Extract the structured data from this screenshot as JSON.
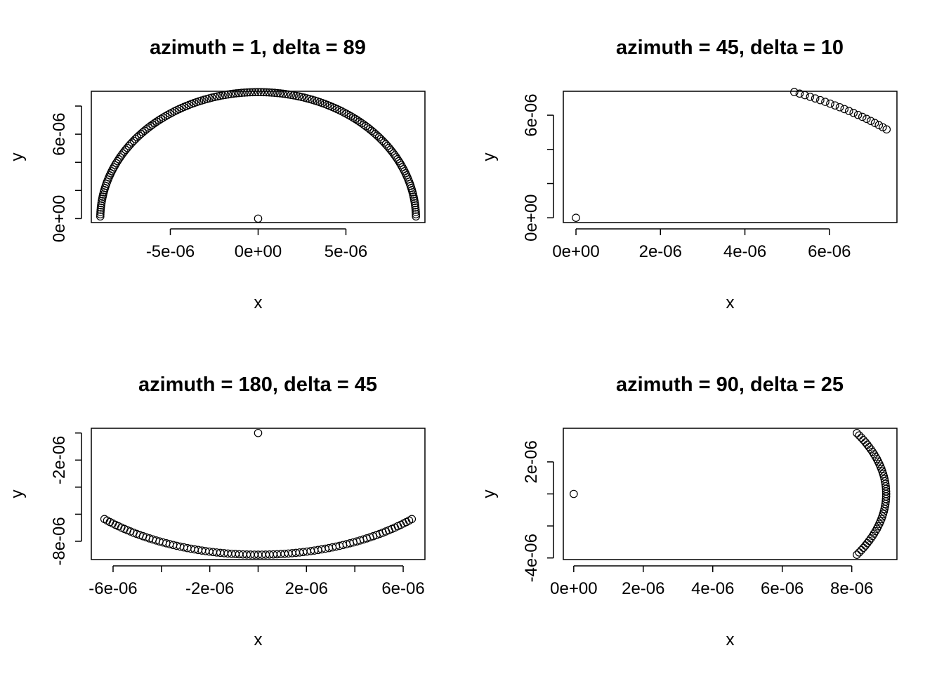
{
  "chart_data": [
    {
      "type": "scatter",
      "title": "azimuth = 1, delta = 89",
      "xlabel": "x",
      "ylabel": "y",
      "xlim": [
        -9.5e-06,
        9.5e-06
      ],
      "ylim": [
        -2.8e-07,
        9.05e-06
      ],
      "x_ticks": [
        -5e-06,
        0,
        5e-06
      ],
      "x_tick_labels": [
        "-5e-06",
        "0e+00",
        "5e-06"
      ],
      "y_ticks": [
        0,
        2e-06,
        4e-06,
        6e-06,
        8e-06
      ],
      "y_tick_labels": [
        "0e+00",
        "",
        "",
        "6e-06",
        ""
      ],
      "origin_point": [
        0,
        0
      ],
      "curve": {
        "shape": "arc",
        "center": [
          0,
          0
        ],
        "radius": 8.99e-06,
        "angle_start_deg": 1,
        "angle_end_deg": 179,
        "n": 179,
        "theta_power": 1.0
      }
    },
    {
      "type": "scatter",
      "title": "azimuth = 45, delta = 10",
      "xlabel": "x",
      "ylabel": "y",
      "xlim": [
        -3e-07,
        7.6e-06
      ],
      "ylim": [
        -2.8e-07,
        7.4e-06
      ],
      "x_ticks": [
        0,
        2e-06,
        4e-06,
        6e-06
      ],
      "x_tick_labels": [
        "0e+00",
        "2e-06",
        "4e-06",
        "6e-06"
      ],
      "y_ticks": [
        0,
        2e-06,
        4e-06,
        6e-06
      ],
      "y_tick_labels": [
        "0e+00",
        "",
        "",
        "6e-06"
      ],
      "origin_point": [
        0,
        0
      ],
      "curve": {
        "shape": "arc",
        "center": [
          0,
          0
        ],
        "radius": 8.99e-06,
        "angle_start_deg": 54.9,
        "angle_end_deg": 35.1,
        "n": 21,
        "theta_power": 1.0
      }
    },
    {
      "type": "scatter",
      "title": "azimuth = 180, delta = 45",
      "xlabel": "x",
      "ylabel": "y",
      "xlim": [
        -6.9e-06,
        6.9e-06
      ],
      "ylim": [
        -9.35e-06,
        3.5e-07
      ],
      "x_ticks": [
        -6e-06,
        -4e-06,
        -2e-06,
        0,
        2e-06,
        4e-06,
        6e-06
      ],
      "x_tick_labels": [
        "-6e-06",
        "",
        "-2e-06",
        "",
        "2e-06",
        "",
        "6e-06"
      ],
      "y_ticks": [
        0,
        -2e-06,
        -4e-06,
        -6e-06,
        -8e-06
      ],
      "y_tick_labels": [
        "",
        "-2e-06",
        "",
        "",
        "-8e-06"
      ],
      "origin_point": [
        0,
        0
      ],
      "curve": {
        "shape": "arc",
        "center": [
          0,
          0
        ],
        "radius": 8.99e-06,
        "angle_start_deg": 225,
        "angle_end_deg": 315,
        "n": 91,
        "theta_power": 1.0
      }
    },
    {
      "type": "scatter",
      "title": "azimuth = 90, delta = 25",
      "xlabel": "x",
      "ylabel": "y",
      "xlim": [
        -3e-07,
        9.3e-06
      ],
      "ylim": [
        -4.1e-06,
        4.1e-06
      ],
      "x_ticks": [
        0,
        2e-06,
        4e-06,
        6e-06,
        8e-06
      ],
      "x_tick_labels": [
        "0e+00",
        "2e-06",
        "4e-06",
        "6e-06",
        "8e-06"
      ],
      "y_ticks": [
        -4e-06,
        -2e-06,
        0,
        2e-06
      ],
      "y_tick_labels": [
        "-4e-06",
        "",
        "",
        "2e-06"
      ],
      "origin_point": [
        0,
        0
      ],
      "curve": {
        "shape": "arc",
        "center": [
          0,
          0
        ],
        "radius": 8.99e-06,
        "angle_start_deg": -25,
        "angle_end_deg": 25,
        "n": 51,
        "theta_power": 1.0
      }
    }
  ]
}
